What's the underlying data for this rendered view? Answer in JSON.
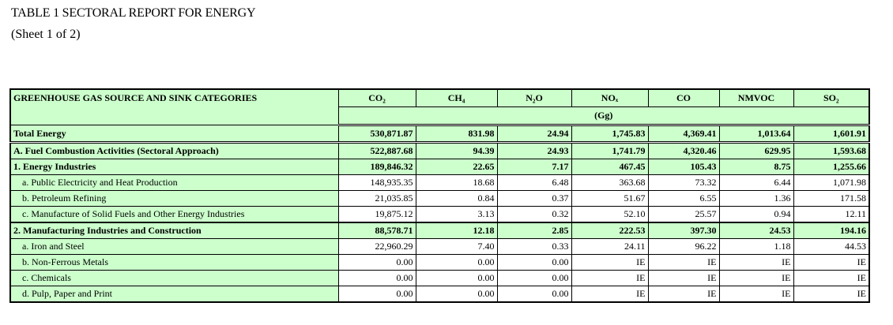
{
  "header": {
    "title": "TABLE  1  SECTORAL REPORT FOR ENERGY",
    "subtitle": "(Sheet 1 of 2)"
  },
  "table": {
    "columns": [
      "GREENHOUSE GAS SOURCE AND SINK CATEGORIES",
      "CO₂",
      "CH₄",
      "N₂O",
      "NOₓ",
      "CO",
      "NMVOC",
      "SO₂"
    ],
    "unit": "(Gg)",
    "rows": [
      [
        "Total Energy",
        "530,871.87",
        "831.98",
        "24.94",
        "1,745.83",
        "4,369.41",
        "1,013.64",
        "1,601.91"
      ],
      [
        "A. Fuel Combustion Activities (Sectoral Approach)",
        "522,887.68",
        "94.39",
        "24.93",
        "1,741.79",
        "4,320.46",
        "629.95",
        "1,593.68"
      ],
      [
        "1. Energy Industries",
        "189,846.32",
        "22.65",
        "7.17",
        "467.45",
        "105.43",
        "8.75",
        "1,255.66"
      ],
      [
        "a.  Public Electricity and Heat Production",
        "148,935.35",
        "18.68",
        "6.48",
        "363.68",
        "73.32",
        "6.44",
        "1,071.98"
      ],
      [
        "b.  Petroleum Refining",
        "21,035.85",
        "0.84",
        "0.37",
        "51.67",
        "6.55",
        "1.36",
        "171.58"
      ],
      [
        "c.  Manufacture of Solid Fuels and Other Energy Industries",
        "19,875.12",
        "3.13",
        "0.32",
        "52.10",
        "25.57",
        "0.94",
        "12.11"
      ],
      [
        "2. Manufacturing Industries and Construction",
        "88,578.71",
        "12.18",
        "2.85",
        "222.53",
        "397.30",
        "24.53",
        "194.16"
      ],
      [
        "a.  Iron and Steel",
        "22,960.29",
        "7.40",
        "0.33",
        "24.11",
        "96.22",
        "1.18",
        "44.53"
      ],
      [
        "b.  Non-Ferrous Metals",
        "0.00",
        "0.00",
        "0.00",
        "IE",
        "IE",
        "IE",
        "IE"
      ],
      [
        "c.  Chemicals",
        "0.00",
        "0.00",
        "0.00",
        "IE",
        "IE",
        "IE",
        "IE"
      ],
      [
        "d.  Pulp, Paper and Print",
        "0.00",
        "0.00",
        "0.00",
        "IE",
        "IE",
        "IE",
        "IE"
      ]
    ]
  }
}
